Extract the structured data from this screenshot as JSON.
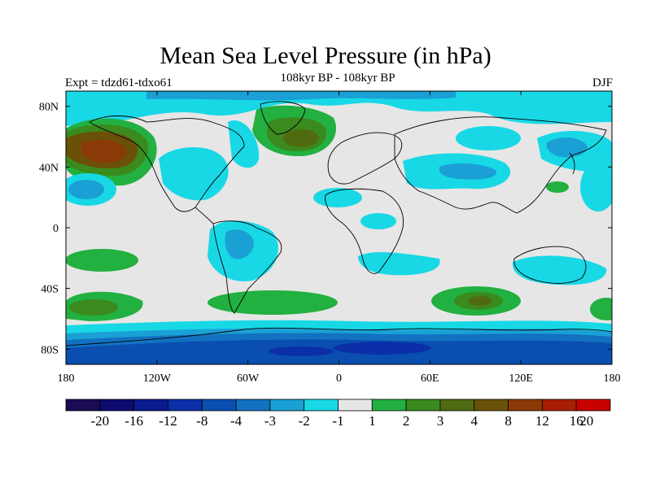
{
  "title": "Mean Sea Level Pressure (in hPa)",
  "subtitle": "108kyr BP - 108kyr BP",
  "expt_label": "Expt = tdzd61-tdxo61",
  "season": "DJF",
  "map": {
    "lon_range": [
      -180,
      180
    ],
    "lat_range": [
      -90,
      90
    ],
    "x_ticks": [
      {
        "lon": -180,
        "label": "180"
      },
      {
        "lon": -120,
        "label": "120W"
      },
      {
        "lon": -60,
        "label": "60W"
      },
      {
        "lon": 0,
        "label": "0"
      },
      {
        "lon": 60,
        "label": "60E"
      },
      {
        "lon": 120,
        "label": "120E"
      },
      {
        "lon": 180,
        "label": "180"
      }
    ],
    "y_ticks": [
      {
        "lat": 80,
        "label": "80N"
      },
      {
        "lat": 40,
        "label": "40N"
      },
      {
        "lat": 0,
        "label": "0"
      },
      {
        "lat": -40,
        "label": "40S"
      },
      {
        "lat": -80,
        "label": "80S"
      }
    ],
    "background_color": "#e6e6e6"
  },
  "colorbar": {
    "colors": [
      "#1a0b52",
      "#0e0a6e",
      "#0b1a8c",
      "#0a2fa8",
      "#0a4fb0",
      "#1271c0",
      "#1aa0d4",
      "#18d8e6",
      "#e6e6e6",
      "#22b040",
      "#3a8a1e",
      "#506a10",
      "#6b5108",
      "#8a3a06",
      "#a81e04",
      "#c80000"
    ],
    "labels": [
      "-20",
      "-16",
      "-12",
      "-8",
      "-4",
      "-3",
      "-2",
      "-1",
      "1",
      "2",
      "3",
      "4",
      "8",
      "12",
      "16",
      "20"
    ]
  }
}
